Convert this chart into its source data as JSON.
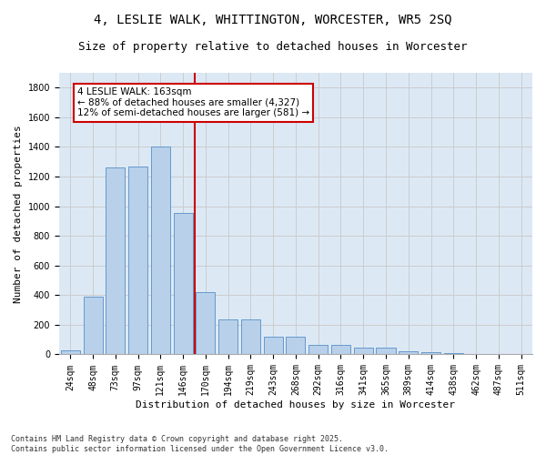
{
  "title_line1": "4, LESLIE WALK, WHITTINGTON, WORCESTER, WR5 2SQ",
  "title_line2": "Size of property relative to detached houses in Worcester",
  "xlabel": "Distribution of detached houses by size in Worcester",
  "ylabel": "Number of detached properties",
  "bar_labels": [
    "24sqm",
    "48sqm",
    "73sqm",
    "97sqm",
    "121sqm",
    "146sqm",
    "170sqm",
    "194sqm",
    "219sqm",
    "243sqm",
    "268sqm",
    "292sqm",
    "316sqm",
    "341sqm",
    "365sqm",
    "389sqm",
    "414sqm",
    "438sqm",
    "462sqm",
    "487sqm",
    "511sqm"
  ],
  "bar_values": [
    25,
    390,
    1260,
    1265,
    1400,
    955,
    420,
    235,
    235,
    120,
    120,
    65,
    65,
    45,
    45,
    20,
    15,
    10,
    5,
    2,
    2
  ],
  "bar_color": "#b8d0ea",
  "bar_edge_color": "#6699cc",
  "vline_color": "#cc0000",
  "annotation_text": "4 LESLIE WALK: 163sqm\n← 88% of detached houses are smaller (4,327)\n12% of semi-detached houses are larger (581) →",
  "annotation_box_color": "#ffffff",
  "annotation_box_edge": "#cc0000",
  "ylim": [
    0,
    1900
  ],
  "yticks": [
    0,
    200,
    400,
    600,
    800,
    1000,
    1200,
    1400,
    1600,
    1800
  ],
  "grid_color": "#cccccc",
  "bg_color": "#dce9f5",
  "footer": "Contains HM Land Registry data © Crown copyright and database right 2025.\nContains public sector information licensed under the Open Government Licence v3.0.",
  "title_fontsize": 10,
  "subtitle_fontsize": 9,
  "axis_label_fontsize": 8,
  "tick_fontsize": 7,
  "annotation_fontsize": 7.5,
  "footer_fontsize": 6
}
